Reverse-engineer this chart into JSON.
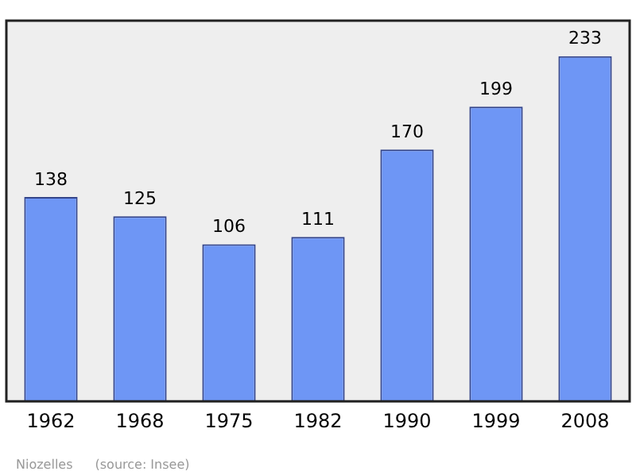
{
  "chart_data": {
    "type": "bar",
    "categories": [
      "1962",
      "1968",
      "1975",
      "1982",
      "1990",
      "1999",
      "2008"
    ],
    "values": [
      138,
      125,
      106,
      111,
      170,
      199,
      233
    ],
    "color": "#6e96f5",
    "ylim": [
      0,
      257
    ],
    "tick_labels": "x",
    "data_labels": true,
    "grid": false,
    "legend": false,
    "annotations": [
      "Niozelles",
      "(source: Insee)"
    ]
  }
}
